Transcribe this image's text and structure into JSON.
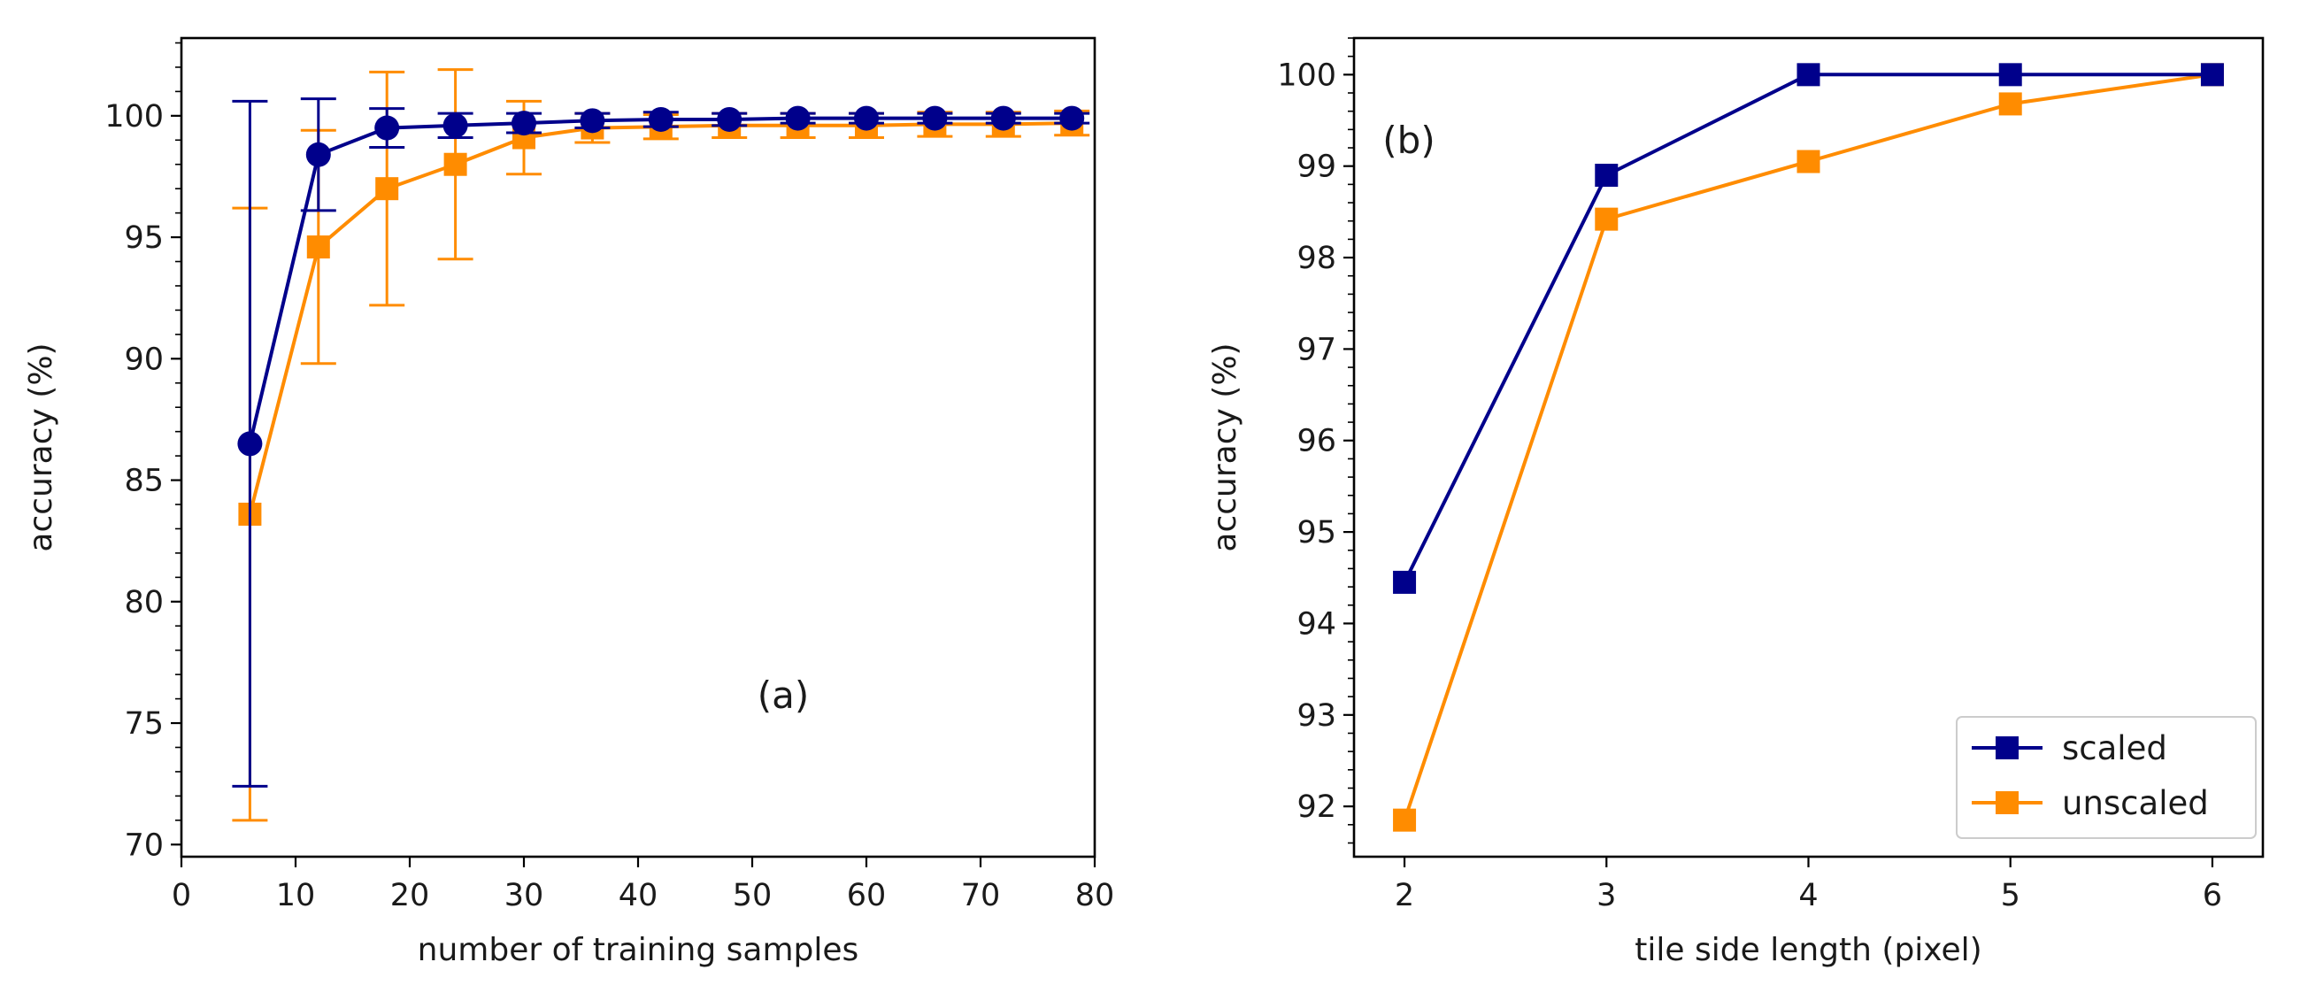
{
  "chart_data": [
    {
      "type": "line",
      "panel_label": "(a)",
      "xlabel": "number of training samples",
      "ylabel": "accuracy (%)",
      "xlim": [
        0,
        80
      ],
      "ylim": [
        69.5,
        103.2
      ],
      "xticks": [
        0,
        10,
        20,
        30,
        40,
        50,
        60,
        70,
        80
      ],
      "xtick_labels": [
        "0",
        "10",
        "20",
        "30",
        "40",
        "50",
        "60",
        "70",
        "80"
      ],
      "yticks": [
        70,
        75,
        80,
        85,
        90,
        95,
        100
      ],
      "ytick_labels": [
        "70",
        "75",
        "80",
        "85",
        "90",
        "95",
        "100"
      ],
      "x": [
        6,
        12,
        18,
        24,
        30,
        36,
        42,
        48,
        54,
        60,
        66,
        72,
        78
      ],
      "series": [
        {
          "name": "scaled",
          "color": "#00008b",
          "marker": "circle",
          "values": [
            86.5,
            98.4,
            99.5,
            99.6,
            99.7,
            99.8,
            99.85,
            99.85,
            99.9,
            99.9,
            99.9,
            99.9,
            99.9
          ],
          "errors": [
            14.1,
            2.3,
            0.8,
            0.5,
            0.4,
            0.3,
            0.3,
            0.25,
            0.2,
            0.2,
            0.2,
            0.2,
            0.2
          ]
        },
        {
          "name": "unscaled",
          "color": "#ff8c00",
          "marker": "square",
          "values": [
            83.6,
            94.6,
            97.0,
            98.0,
            99.1,
            99.5,
            99.55,
            99.6,
            99.6,
            99.6,
            99.65,
            99.65,
            99.7
          ],
          "errors": [
            12.6,
            4.8,
            4.8,
            3.9,
            1.5,
            0.6,
            0.5,
            0.5,
            0.5,
            0.5,
            0.5,
            0.5,
            0.5
          ]
        }
      ]
    },
    {
      "type": "line",
      "panel_label": "(b)",
      "xlabel": "tile side length (pixel)",
      "ylabel": "accuracy (%)",
      "xlim": [
        1.75,
        6.25
      ],
      "ylim": [
        91.45,
        100.4
      ],
      "xticks": [
        2,
        3,
        4,
        5,
        6
      ],
      "xtick_labels": [
        "2",
        "3",
        "4",
        "5",
        "6"
      ],
      "yticks": [
        92,
        93,
        94,
        95,
        96,
        97,
        98,
        99,
        100
      ],
      "ytick_labels": [
        "92",
        "93",
        "94",
        "95",
        "96",
        "97",
        "98",
        "99",
        "100"
      ],
      "legend_position": "lower-right",
      "x": [
        2,
        3,
        4,
        5,
        6
      ],
      "series": [
        {
          "name": "scaled",
          "color": "#00008b",
          "marker": "square",
          "values": [
            94.45,
            98.9,
            100.0,
            100.0,
            100.0
          ]
        },
        {
          "name": "unscaled",
          "color": "#ff8c00",
          "marker": "square",
          "values": [
            91.85,
            98.42,
            99.05,
            99.68,
            100.0
          ]
        }
      ]
    }
  ]
}
